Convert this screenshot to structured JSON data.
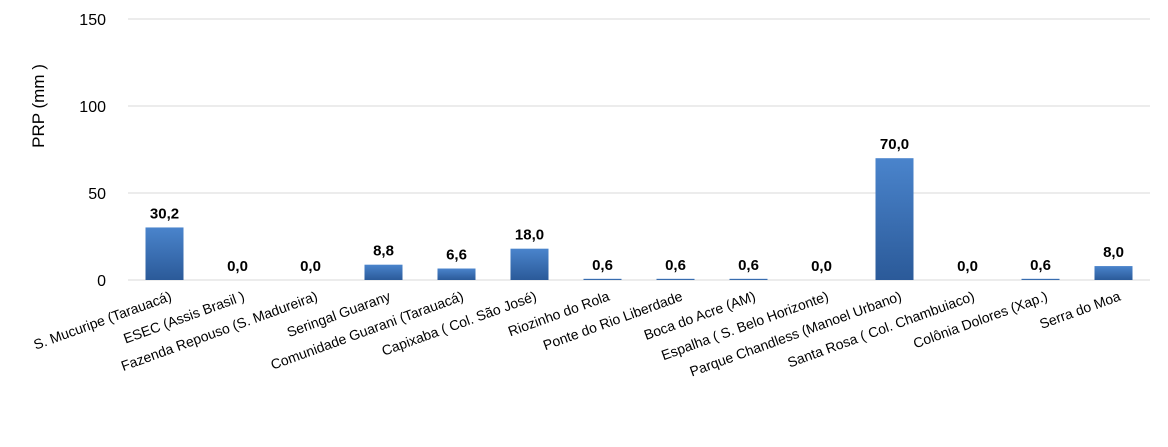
{
  "chart_data": {
    "type": "bar",
    "ylabel": "PRP (mm )",
    "xlabel": "",
    "ylim": [
      0,
      150
    ],
    "yticks": [
      0,
      50,
      100,
      150
    ],
    "grid": true,
    "legend": "none",
    "bar_color": "#3a6fb5",
    "bar_color_dark": "#2e5c9a",
    "categories": [
      "S. Mucuripe (Tarauacá)",
      "ESEC (Assis Brasil )",
      "Fazenda Repouso (S. Madureira)",
      "Seringal Guarany",
      "Comunidade Guarani (Tarauacá)",
      "Capixaba ( Col. São José)",
      "Riozinho do Rola",
      "Ponte do Rio Liberdade",
      "Boca do Acre (AM)",
      "Espalha ( S. Belo Horizonte)",
      "Parque Chandless (Manoel Urbano)",
      "Santa Rosa ( Col. Chambuiaco)",
      "Colônia Dolores (Xap.)",
      "Serra do Moa"
    ],
    "values": [
      30.2,
      0.0,
      0.0,
      8.8,
      6.6,
      18.0,
      0.6,
      0.6,
      0.6,
      0.0,
      70.0,
      0.0,
      0.6,
      8.0
    ],
    "data_labels": [
      "30,2",
      "0,0",
      "0,0",
      "8,8",
      "6,6",
      "18,0",
      "0,6",
      "0,6",
      "0,6",
      "0,0",
      "70,0",
      "0,0",
      "0,6",
      "8,0"
    ]
  }
}
